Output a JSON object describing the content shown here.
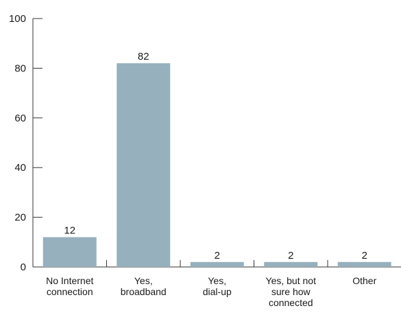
{
  "chart_data": {
    "type": "bar",
    "title": "",
    "xlabel": "",
    "ylabel": "",
    "ylim": [
      0,
      100
    ],
    "yticks": [
      0,
      20,
      40,
      60,
      80,
      100
    ],
    "grid": false,
    "categories": [
      [
        "No Internet",
        "connection"
      ],
      [
        "Yes,",
        "broadband"
      ],
      [
        "Yes,",
        "dial-up"
      ],
      [
        "Yes, but not",
        "sure how",
        "connected"
      ],
      [
        "Other"
      ]
    ],
    "values": [
      12,
      82,
      2,
      2,
      2
    ],
    "data_labels": [
      "12",
      "82",
      "2",
      "2",
      "2"
    ],
    "bar_color": "#97b0be",
    "axis_color": "#333333"
  }
}
